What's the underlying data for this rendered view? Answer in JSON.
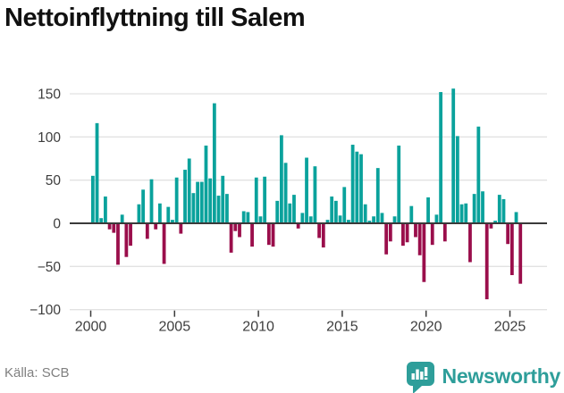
{
  "header": {
    "title": "Nettoinflyttning till Salem"
  },
  "footer": {
    "source_label": "Källa: SCB",
    "brand": {
      "name": "Newsworthy",
      "icon": "newsworthy-speech-bubble-bar-chart-icon"
    }
  },
  "colors": {
    "positive_bar": "#0AA29C",
    "negative_bar": "#9A0E4B",
    "gridline": "#E2E2E2",
    "zero_axis": "#3A3A3A",
    "tick_label": "#3D3D3D",
    "title_text": "#111111",
    "source_text": "#808080",
    "brand_teal": "#2E9E9A"
  },
  "chart_data": {
    "type": "bar",
    "title": "Nettoinflyttning till Salem",
    "frequency": "quarterly",
    "x_start_year": 2000,
    "x_start_quarter": 1,
    "values": [
      55,
      116,
      6,
      31,
      -7,
      -11,
      -48,
      10,
      -39,
      -26,
      0,
      22,
      39,
      -18,
      51,
      -7,
      23,
      -47,
      19,
      4,
      53,
      -12,
      62,
      75,
      35,
      48,
      48,
      90,
      52,
      139,
      32,
      55,
      34,
      -34,
      -9,
      -16,
      14,
      13,
      -27,
      53,
      8,
      54,
      -25,
      -27,
      26,
      102,
      70,
      23,
      33,
      -6,
      12,
      76,
      8,
      66,
      -17,
      -28,
      4,
      31,
      26,
      9,
      42,
      4,
      91,
      83,
      80,
      22,
      3,
      8,
      64,
      12,
      -36,
      -21,
      8,
      90,
      -26,
      -22,
      20,
      -16,
      -37,
      -68,
      30,
      -25,
      10,
      152,
      -21,
      0,
      156,
      101,
      22,
      23,
      -45,
      34,
      112,
      37,
      -88,
      -6,
      3,
      33,
      28,
      -24,
      -60,
      13,
      -70
    ],
    "x_tick_years": [
      2000,
      2005,
      2010,
      2015,
      2020,
      2025
    ],
    "y_ticks": [
      150,
      100,
      50,
      0,
      -50,
      -100
    ],
    "y_tick_labels": [
      "150",
      "100",
      "50",
      "0",
      "−50",
      "−100"
    ],
    "ylim": [
      -100,
      156
    ],
    "grid": true,
    "legend": false,
    "source": "SCB"
  }
}
